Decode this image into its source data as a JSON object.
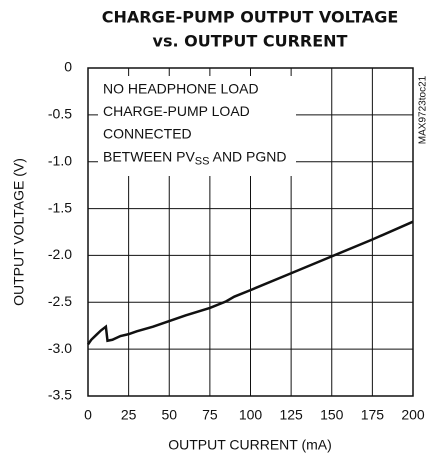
{
  "chart_data": {
    "type": "line",
    "title": [
      "CHARGE-PUMP OUTPUT VOLTAGE",
      "vs. OUTPUT CURRENT"
    ],
    "x_label": "OUTPUT CURRENT (mA)",
    "y_label": "OUTPUT VOLTAGE (V)",
    "side_label": "MAX9723toc21",
    "annotation": [
      "NO HEADPHONE LOAD",
      "CHARGE-PUMP LOAD",
      "CONNECTED",
      [
        "BETWEEN PV",
        "SS",
        " AND PGND"
      ]
    ],
    "x": [
      0,
      2,
      5,
      8,
      11,
      12,
      15,
      20,
      25,
      30,
      40,
      50,
      60,
      75,
      85,
      90,
      100,
      125,
      150,
      175,
      200
    ],
    "series": [
      {
        "name": "Output voltage",
        "color": "#111111",
        "values": [
          -2.95,
          -2.9,
          -2.85,
          -2.8,
          -2.76,
          -2.91,
          -2.9,
          -2.86,
          -2.84,
          -2.81,
          -2.76,
          -2.7,
          -2.64,
          -2.56,
          -2.49,
          -2.44,
          -2.37,
          -2.19,
          -2.01,
          -1.83,
          -1.64
        ]
      }
    ],
    "xlim": [
      0,
      200
    ],
    "xticks": [
      0,
      25,
      50,
      75,
      100,
      125,
      150,
      175,
      200
    ],
    "ylim": [
      -3.5,
      0
    ],
    "yticks": [
      0,
      -0.5,
      {
        "value": -1,
        "label": "-1.0"
      },
      -1.5,
      {
        "value": -2,
        "label": "-2.0"
      },
      -2.5,
      {
        "value": -3,
        "label": "-3.0"
      },
      -3.5
    ],
    "grid": true
  }
}
